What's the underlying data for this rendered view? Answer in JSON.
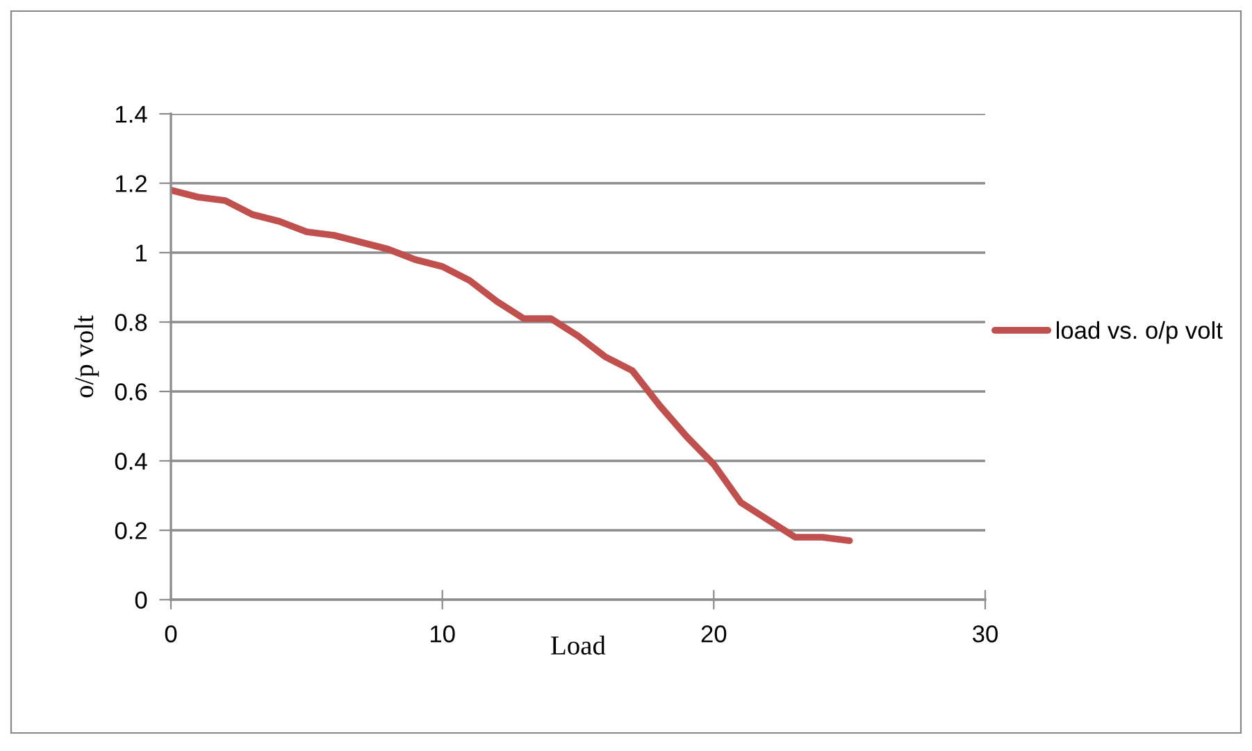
{
  "chart_data": {
    "type": "line",
    "xlabel": "Load",
    "ylabel": "o/p volt",
    "x": [
      0,
      1,
      2,
      3,
      4,
      5,
      6,
      7,
      8,
      9,
      10,
      11,
      12,
      13,
      14,
      15,
      16,
      17,
      18,
      19,
      20,
      21,
      22,
      23,
      24,
      25
    ],
    "series": [
      {
        "name": "load vs. o/p volt",
        "color": "#c0504d",
        "values": [
          1.18,
          1.16,
          1.15,
          1.11,
          1.09,
          1.06,
          1.05,
          1.03,
          1.01,
          0.98,
          0.96,
          0.92,
          0.86,
          0.81,
          0.81,
          0.76,
          0.7,
          0.66,
          0.56,
          0.47,
          0.39,
          0.28,
          0.23,
          0.18,
          0.18,
          0.17
        ]
      }
    ],
    "xlim": [
      0,
      30
    ],
    "xticks": [
      0,
      10,
      20,
      30
    ],
    "ylim": [
      0,
      1.4
    ],
    "yticks": [
      0,
      0.2,
      0.4,
      0.6,
      0.8,
      1,
      1.2,
      1.4
    ],
    "grid": "y",
    "legend": "right",
    "marker": "none",
    "line_style": "solid"
  }
}
